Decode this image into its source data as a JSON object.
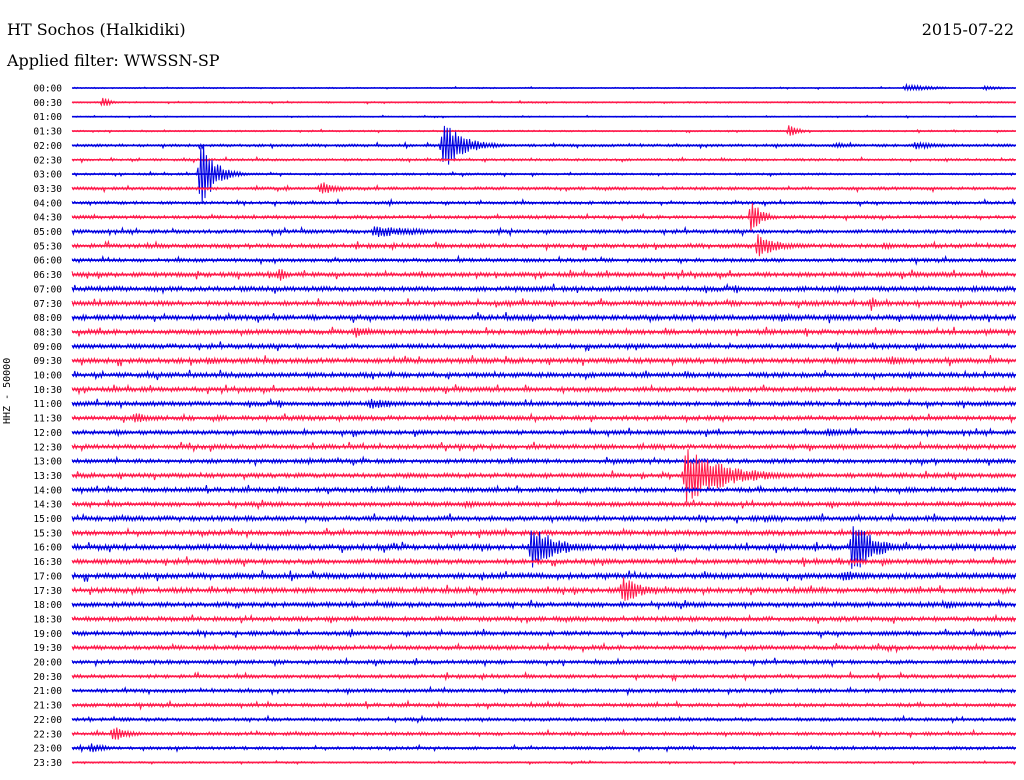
{
  "header": {
    "station": "HT Sochos (Halkidiki)",
    "date": "2015-07-22",
    "filter": "Applied filter: WWSSN-SP"
  },
  "side_label": "HHZ - 50000",
  "colors": {
    "even_trace": "#0000e0",
    "odd_trace": "#ff1a4b",
    "background": "#ffffff",
    "text": "#000000"
  },
  "chart_data": {
    "type": "line",
    "title": "HT Sochos (Halkidiki)",
    "subtitle": "Applied filter: WWSSN-SP",
    "ylabel": "HHZ - 50000",
    "xlabel": "",
    "grid": false,
    "legend": "none",
    "minutes_per_line": 30,
    "lines": [
      "00:00",
      "00:30",
      "01:00",
      "01:30",
      "02:00",
      "02:30",
      "03:00",
      "03:30",
      "04:00",
      "04:30",
      "05:00",
      "05:30",
      "06:00",
      "06:30",
      "07:00",
      "07:30",
      "08:00",
      "08:30",
      "09:00",
      "09:30",
      "10:00",
      "10:30",
      "11:00",
      "11:30",
      "12:00",
      "12:30",
      "13:00",
      "13:30",
      "14:00",
      "14:30",
      "15:00",
      "15:30",
      "16:00",
      "16:30",
      "17:00",
      "17:30",
      "18:00",
      "18:30",
      "19:00",
      "19:30",
      "20:00",
      "20:30",
      "21:00",
      "21:30",
      "22:00",
      "22:30",
      "23:00",
      "23:30"
    ],
    "noise_level": [
      0.4,
      0.5,
      0.4,
      0.5,
      0.9,
      0.8,
      0.7,
      1.0,
      1.0,
      1.1,
      1.2,
      1.4,
      1.2,
      1.5,
      1.6,
      1.6,
      1.7,
      1.6,
      1.5,
      1.7,
      1.6,
      1.5,
      1.5,
      1.5,
      1.4,
      1.5,
      1.4,
      1.5,
      1.5,
      1.5,
      1.6,
      1.6,
      1.8,
      1.6,
      1.8,
      1.7,
      1.6,
      1.5,
      1.4,
      1.4,
      1.3,
      1.2,
      1.2,
      1.2,
      1.1,
      1.1,
      1.0,
      0.6
    ],
    "events": [
      {
        "line": "00:00",
        "minute": 26.5,
        "amplitude": 3.5,
        "duration": 1.8
      },
      {
        "line": "00:00",
        "minute": 29.0,
        "amplitude": 2.5,
        "duration": 1.0
      },
      {
        "line": "00:30",
        "minute": 1.0,
        "amplitude": 6.0,
        "duration": 0.4
      },
      {
        "line": "01:30",
        "minute": 22.8,
        "amplitude": 7.0,
        "duration": 0.5
      },
      {
        "line": "02:00",
        "minute": 11.8,
        "amplitude": 26.0,
        "duration": 1.2
      },
      {
        "line": "02:00",
        "minute": 24.3,
        "amplitude": 3.0,
        "duration": 1.0
      },
      {
        "line": "02:00",
        "minute": 26.8,
        "amplitude": 4.0,
        "duration": 1.6
      },
      {
        "line": "03:00",
        "minute": 4.1,
        "amplitude": 36.0,
        "duration": 0.8
      },
      {
        "line": "03:30",
        "minute": 7.9,
        "amplitude": 8.0,
        "duration": 1.0
      },
      {
        "line": "04:30",
        "minute": 21.6,
        "amplitude": 18.0,
        "duration": 0.6
      },
      {
        "line": "05:00",
        "minute": 9.6,
        "amplitude": 6.0,
        "duration": 3.0
      },
      {
        "line": "05:30",
        "minute": 21.8,
        "amplitude": 12.0,
        "duration": 1.2
      },
      {
        "line": "05:30",
        "minute": 25.8,
        "amplitude": 4.0,
        "duration": 1.0
      },
      {
        "line": "06:30",
        "minute": 6.6,
        "amplitude": 8.0,
        "duration": 0.4
      },
      {
        "line": "07:30",
        "minute": 13.8,
        "amplitude": 4.0,
        "duration": 1.0
      },
      {
        "line": "07:30",
        "minute": 25.4,
        "amplitude": 8.0,
        "duration": 0.3
      },
      {
        "line": "08:00",
        "minute": 22.5,
        "amplitude": 5.0,
        "duration": 1.0
      },
      {
        "line": "08:30",
        "minute": 9.0,
        "amplitude": 6.0,
        "duration": 1.4
      },
      {
        "line": "09:30",
        "minute": 4.3,
        "amplitude": 5.0,
        "duration": 1.0
      },
      {
        "line": "09:30",
        "minute": 26.0,
        "amplitude": 5.0,
        "duration": 1.4
      },
      {
        "line": "11:00",
        "minute": 9.5,
        "amplitude": 6.0,
        "duration": 1.6
      },
      {
        "line": "11:30",
        "minute": 2.0,
        "amplitude": 6.0,
        "duration": 1.0
      },
      {
        "line": "12:00",
        "minute": 24.0,
        "amplitude": 4.0,
        "duration": 1.4
      },
      {
        "line": "13:30",
        "minute": 19.5,
        "amplitude": 28.0,
        "duration": 2.4
      },
      {
        "line": "14:30",
        "minute": 12.5,
        "amplitude": 4.0,
        "duration": 1.4
      },
      {
        "line": "15:00",
        "minute": 22.0,
        "amplitude": 4.0,
        "duration": 1.4
      },
      {
        "line": "16:00",
        "minute": 14.6,
        "amplitude": 24.0,
        "duration": 1.4
      },
      {
        "line": "16:00",
        "minute": 24.8,
        "amplitude": 30.0,
        "duration": 1.2
      },
      {
        "line": "17:00",
        "minute": 24.5,
        "amplitude": 6.0,
        "duration": 1.4
      },
      {
        "line": "17:30",
        "minute": 17.5,
        "amplitude": 14.0,
        "duration": 1.2
      },
      {
        "line": "18:00",
        "minute": 27.8,
        "amplitude": 5.0,
        "duration": 0.8
      },
      {
        "line": "22:30",
        "minute": 1.3,
        "amplitude": 8.0,
        "duration": 1.0
      },
      {
        "line": "23:00",
        "minute": 0.6,
        "amplitude": 5.0,
        "duration": 1.0
      }
    ]
  }
}
